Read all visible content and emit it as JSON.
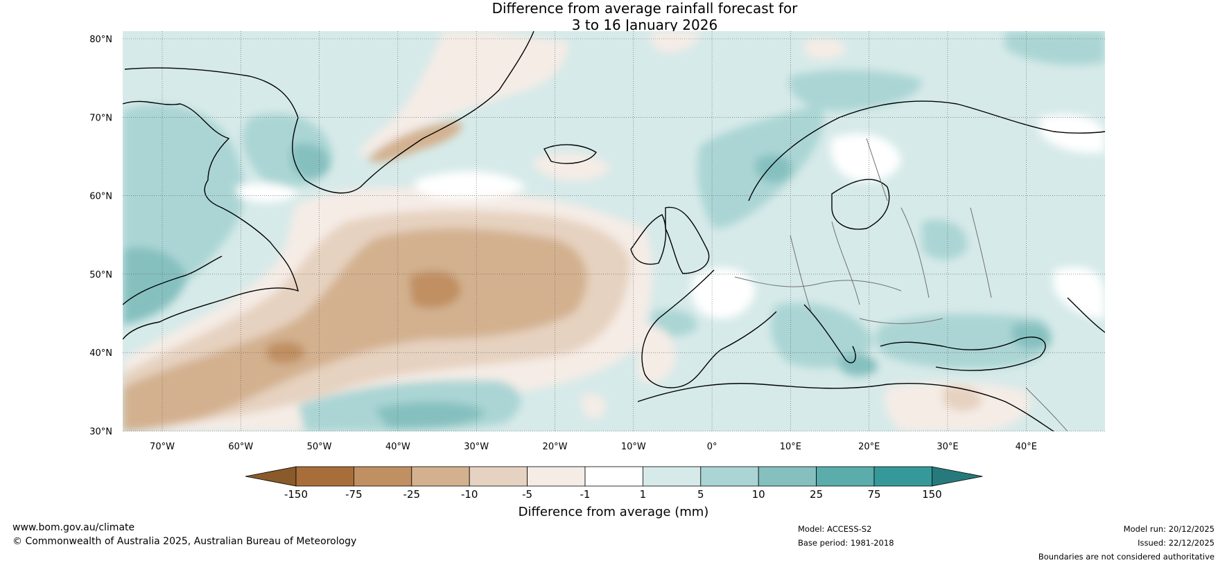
{
  "title": {
    "line1": "Difference from average rainfall forecast for",
    "line2": "3 to 16 January 2026"
  },
  "axes": {
    "lat_labels": [
      "80°N",
      "70°N",
      "60°N",
      "50°N",
      "40°N",
      "30°N"
    ],
    "lon_labels": [
      "70°W",
      "60°W",
      "50°W",
      "40°W",
      "30°W",
      "20°W",
      "10°W",
      "0°",
      "10°E",
      "20°E",
      "30°E",
      "40°E"
    ]
  },
  "colorbar": {
    "title": "Difference from average (mm)",
    "labels": [
      "-150",
      "-75",
      "-25",
      "-10",
      "-5",
      "-1",
      "1",
      "5",
      "10",
      "25",
      "75",
      "150"
    ],
    "colors": [
      "#a86e3a",
      "#c08f62",
      "#d3b18f",
      "#e6d2c0",
      "#f5ece6",
      "#ffffff",
      "#d6eae9",
      "#aad5d4",
      "#85c0bf",
      "#5aadab",
      "#35999a"
    ],
    "low_extend_color": "#8a5a2b",
    "high_extend_color": "#267a7b"
  },
  "footer": {
    "website": "www.bom.gov.au/climate",
    "copyright": "© Commonwealth of Australia 2025, Australian Bureau of Meteorology",
    "model": "Model: ACCESS-S2",
    "base_period": "Base period: 1981-2018",
    "model_run": "Model run: 20/12/2025",
    "issued": "Issued: 22/12/2025",
    "disclaimer": "Boundaries are not considered authoritative"
  }
}
